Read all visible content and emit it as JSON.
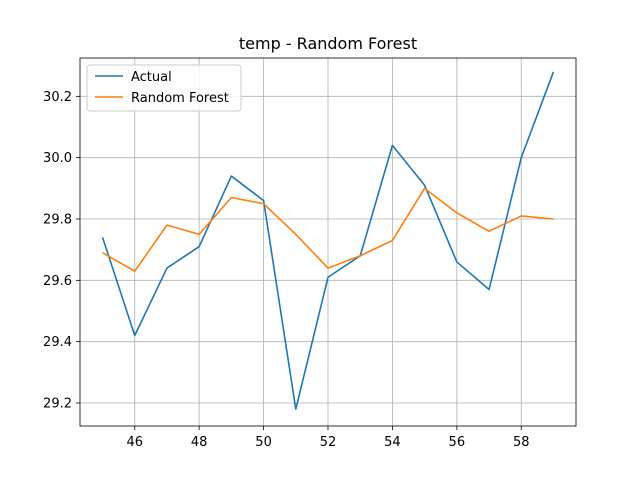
{
  "chart_data": {
    "type": "line",
    "title": "temp - Random Forest",
    "xlabel": "",
    "ylabel": "",
    "x": [
      45,
      46,
      47,
      48,
      49,
      50,
      51,
      52,
      53,
      54,
      55,
      56,
      57,
      58,
      59
    ],
    "xlim": [
      44.3,
      59.7
    ],
    "ylim": [
      29.125,
      30.325
    ],
    "xticks": [
      46,
      48,
      50,
      52,
      54,
      56,
      58
    ],
    "yticks": [
      29.2,
      29.4,
      29.6,
      29.8,
      30.0,
      30.2
    ],
    "ytick_labels": [
      "29.2",
      "29.4",
      "29.6",
      "29.8",
      "30.0",
      "30.2"
    ],
    "grid": true,
    "legend_position": "top-left",
    "series": [
      {
        "name": "Actual",
        "color": "#1f77b4",
        "values": [
          29.74,
          29.42,
          29.64,
          29.71,
          29.94,
          29.86,
          29.18,
          29.61,
          29.68,
          30.04,
          29.91,
          29.66,
          29.57,
          30.0,
          30.28
        ]
      },
      {
        "name": "Random Forest",
        "color": "#ff7f0e",
        "values": [
          29.69,
          29.63,
          29.78,
          29.75,
          29.87,
          29.85,
          29.75,
          29.64,
          29.68,
          29.73,
          29.9,
          29.82,
          29.76,
          29.81,
          29.8
        ]
      }
    ]
  }
}
